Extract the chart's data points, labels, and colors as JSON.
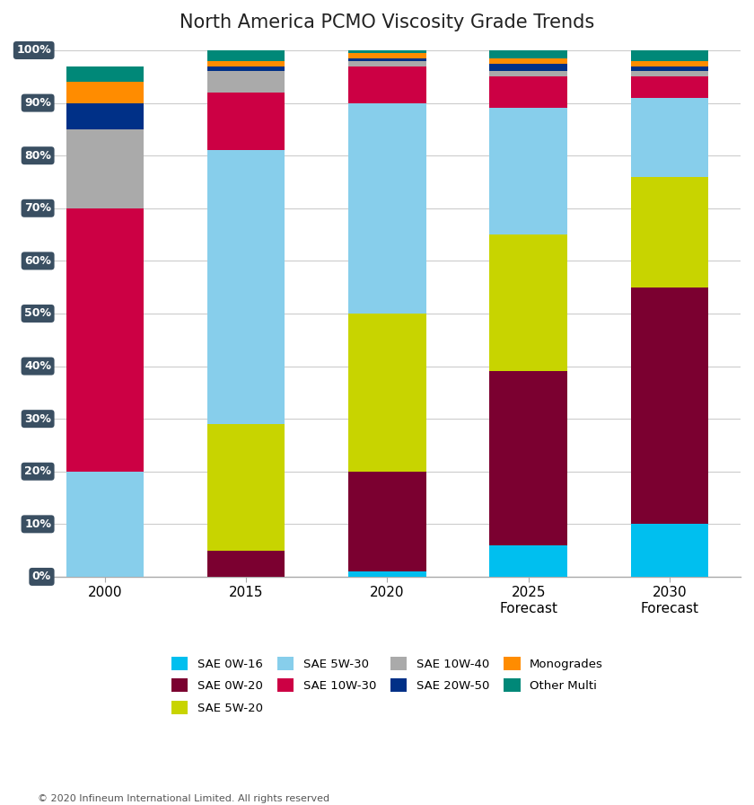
{
  "categories": [
    "2000",
    "2015",
    "2020",
    "2025\nForecast",
    "2030\nForecast"
  ],
  "title": "North America PCMO Viscosity Grade Trends",
  "footnote": "© 2020 Infineum International Limited. All rights reserved",
  "series_order": [
    "SAE 0W-16",
    "SAE 0W-20",
    "SAE 5W-20",
    "SAE 5W-30",
    "SAE 10W-30",
    "SAE 10W-40",
    "SAE 20W-50",
    "Monogrades",
    "Other Multi"
  ],
  "series": {
    "SAE 0W-16": [
      0,
      0,
      1,
      6,
      10
    ],
    "SAE 0W-20": [
      0,
      5,
      19,
      33,
      45
    ],
    "SAE 5W-20": [
      0,
      24,
      30,
      26,
      21
    ],
    "SAE 5W-30": [
      20,
      52,
      40,
      24,
      15
    ],
    "SAE 10W-30": [
      50,
      11,
      7,
      6,
      4
    ],
    "SAE 10W-40": [
      15,
      4,
      1,
      1,
      1
    ],
    "SAE 20W-50": [
      5,
      1,
      0.5,
      1.5,
      1
    ],
    "Monogrades": [
      4,
      1,
      1,
      1,
      1
    ],
    "Other Multi": [
      3,
      2,
      0.5,
      1.5,
      2
    ]
  },
  "colors": {
    "SAE 0W-16": "#00BFEF",
    "SAE 0W-20": "#7B0030",
    "SAE 5W-20": "#C8D400",
    "SAE 5W-30": "#87CEEB",
    "SAE 10W-30": "#CC0044",
    "SAE 10W-40": "#AAAAAA",
    "SAE 20W-50": "#003087",
    "Monogrades": "#FF8C00",
    "Other Multi": "#008878"
  },
  "legend_order": [
    "SAE 0W-16",
    "SAE 0W-20",
    "SAE 5W-20",
    "SAE 5W-30",
    "SAE 10W-30",
    "SAE 10W-40",
    "SAE 20W-50",
    "Monogrades",
    "Other Multi"
  ],
  "ylim": [
    0,
    100
  ],
  "background_color": "#FFFFFF",
  "axis_label_bg": "#3A4F62",
  "axis_label_fg": "#FFFFFF",
  "bar_width": 0.55
}
